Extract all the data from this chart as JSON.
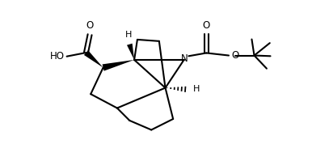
{
  "background_color": "#ffffff",
  "line_color": "#000000",
  "line_width": 1.5,
  "fig_width": 3.86,
  "fig_height": 1.94,
  "dpi": 100,
  "xlim": [
    0,
    10
  ],
  "ylim": [
    0,
    5
  ]
}
